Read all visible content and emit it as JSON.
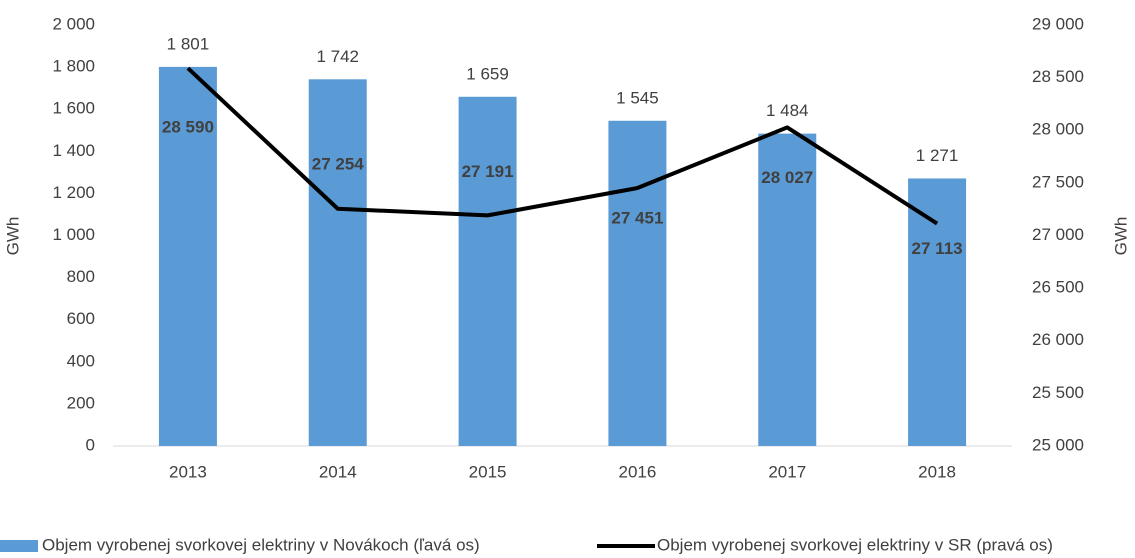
{
  "chart_data": {
    "type": "combo",
    "categories": [
      "2013",
      "2014",
      "2015",
      "2016",
      "2017",
      "2018"
    ],
    "series": [
      {
        "name": "Objem vyrobenej svorkovej elektriny v Novákoch (ľavá os)",
        "type": "bar",
        "color": "#5b9bd5",
        "values": [
          1801,
          1742,
          1659,
          1545,
          1484,
          1271
        ],
        "value_labels": [
          "1 801",
          "1 742",
          "1 659",
          "1 545",
          "1 484",
          "1 271"
        ]
      },
      {
        "name": "Objem vyrobenej svorkovej elektriny v SR (pravá os)",
        "type": "line",
        "axis": "y2",
        "color": "#000000",
        "values": [
          28590,
          27254,
          27191,
          27451,
          28027,
          27113
        ],
        "value_labels": [
          "28 590",
          "27 254",
          "27 191",
          "27 451",
          "28 027",
          "27 113"
        ]
      }
    ],
    "y_label": "GWh",
    "y2_label": "GWh",
    "ylim": [
      0,
      2000
    ],
    "yticks": [
      0,
      200,
      400,
      600,
      800,
      {
        "value": 1000,
        "label": "1 000"
      },
      {
        "value": 1200,
        "label": "1 200"
      },
      {
        "value": 1400,
        "label": "1 400"
      },
      {
        "value": 1600,
        "label": "1 600"
      },
      {
        "value": 1800,
        "label": "1 800"
      },
      {
        "value": 2000,
        "label": "2 000"
      }
    ],
    "y2lim": [
      25000,
      29000
    ],
    "y2ticks": [
      {
        "value": 25000,
        "label": "25 000"
      },
      {
        "value": 25500,
        "label": "25 500"
      },
      {
        "value": 26000,
        "label": "26 000"
      },
      {
        "value": 26500,
        "label": "26 500"
      },
      {
        "value": 27000,
        "label": "27 000"
      },
      {
        "value": 27500,
        "label": "27 500"
      },
      {
        "value": 28000,
        "label": "28 000"
      },
      {
        "value": 28500,
        "label": "28 500"
      },
      {
        "value": 29000,
        "label": "29 000"
      }
    ],
    "grid": false,
    "legend": "bottom"
  }
}
